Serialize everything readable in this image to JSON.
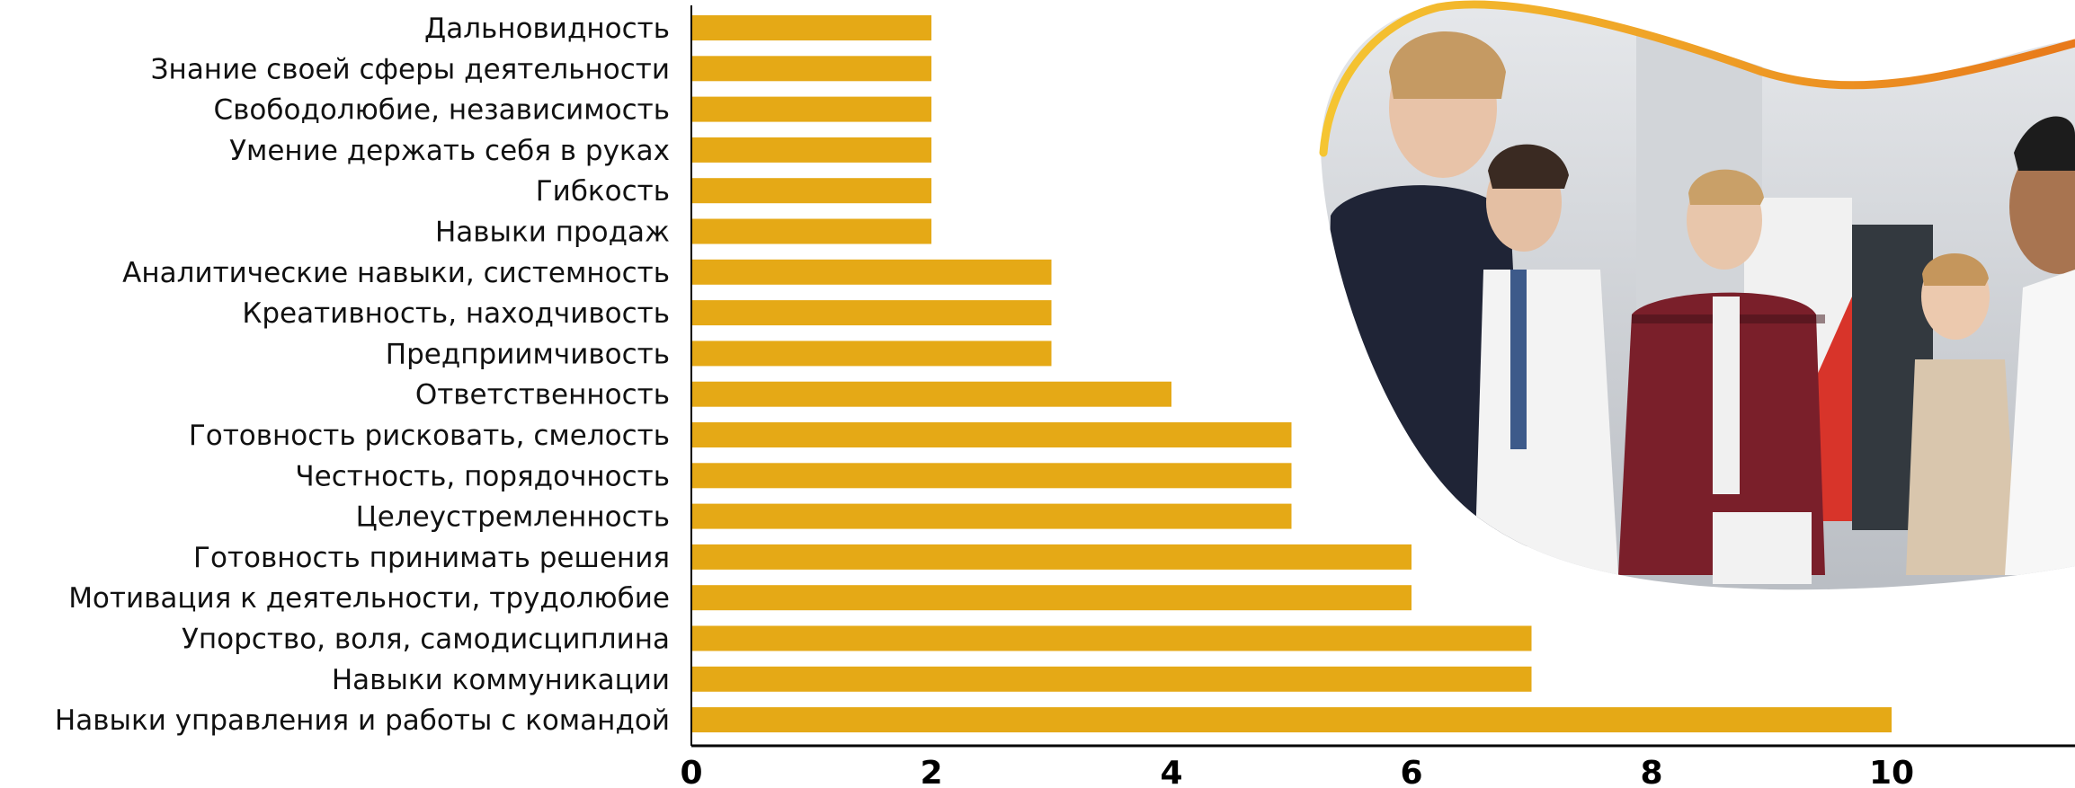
{
  "chart_data": {
    "type": "bar",
    "orientation": "horizontal",
    "title": "",
    "xlabel": "",
    "ylabel": "",
    "categories": [
      "Дальновидность",
      "Знание своей сферы деятельности",
      "Свободолюбие, независимость",
      "Умение держать себя в руках",
      "Гибкость",
      "Навыки продаж",
      "Аналитические навыки, системность",
      "Креативность, находчивость",
      "Предприимчивость",
      "Ответственность",
      "Готовность рисковать, смелость",
      "Честность, порядочность",
      "Целеустремленность",
      "Готовность принимать решения",
      "Мотивация к деятельности, трудолюбие",
      "Упорство, воля, самодисциплина",
      "Навыки коммуникации",
      "Навыки управления и работы с командой"
    ],
    "values": [
      2,
      2,
      2,
      2,
      2,
      2,
      3,
      3,
      3,
      4,
      5,
      5,
      5,
      6,
      6,
      7,
      7,
      10
    ],
    "xlim": [
      0,
      12
    ],
    "xticks": [
      0,
      2,
      4,
      6,
      8,
      10
    ],
    "grid": false,
    "legend": "none",
    "bar_color": "#E5A916",
    "axis_color": "#000000"
  },
  "decor": {
    "photo_description_icon": "people-photo",
    "accent_color": "#F2A81D",
    "accent_color_dark": "#E8791A"
  }
}
